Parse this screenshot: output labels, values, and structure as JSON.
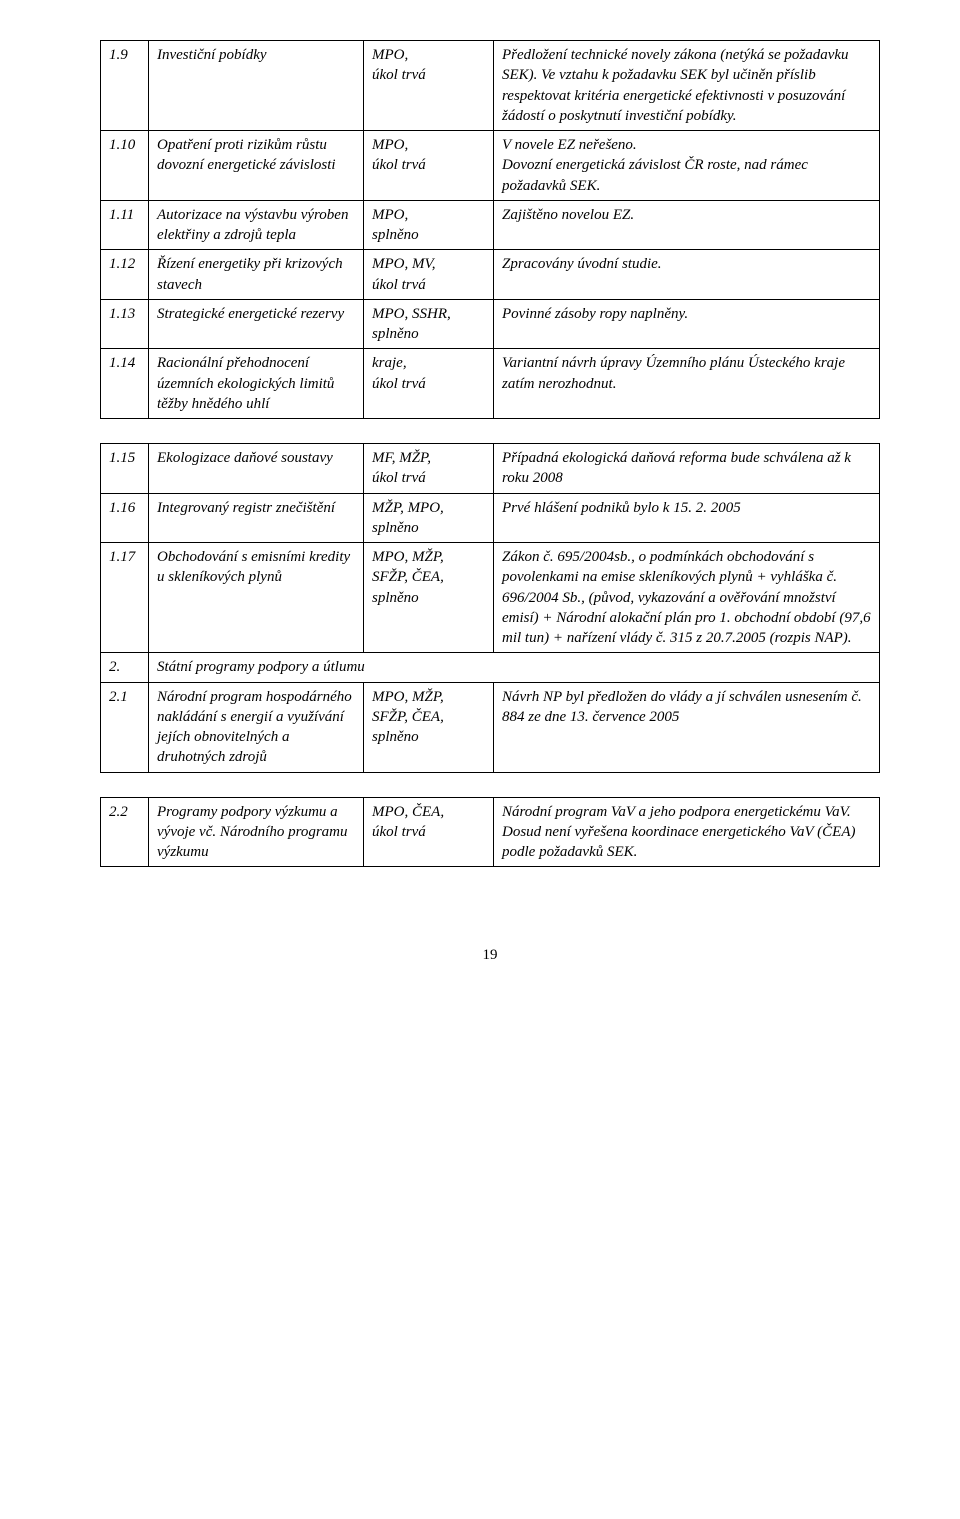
{
  "t1": {
    "rows": [
      {
        "num": "1.9",
        "title": "Investiční pobídky",
        "resp": "MPO,\núkol trvá",
        "note": "Předložení technické novely zákona (netýká se požadavku SEK). Ve vztahu k požadavku SEK byl učiněn příslib respektovat kritéria energetické efektivnosti v posuzování žádostí o poskytnutí investiční pobídky."
      },
      {
        "num": "1.10",
        "title": "Opatření proti rizikům růstu dovozní energetické závislosti",
        "resp": "MPO,\núkol trvá",
        "note": "V novele EZ neřešeno.\nDovozní energetická závislost ČR roste, nad rámec požadavků SEK."
      },
      {
        "num": "1.11",
        "title": "Autorizace na výstavbu výroben elektřiny a zdrojů tepla",
        "resp": "MPO,\nsplněno",
        "note": "Zajištěno novelou EZ."
      },
      {
        "num": "1.12",
        "title": "Řízení energetiky při krizových stavech",
        "resp": "MPO, MV,\núkol trvá",
        "note": "Zpracovány úvodní studie."
      },
      {
        "num": "1.13",
        "title": "Strategické energetické rezervy",
        "resp": "MPO, SSHR,\nsplněno",
        "note": "Povinné zásoby ropy naplněny."
      },
      {
        "num": "1.14",
        "title": "Racionální přehodnocení územních ekologických limitů těžby hnědého uhlí",
        "resp": "kraje,\núkol trvá",
        "note": "Variantní návrh úpravy Územního plánu Ústeckého kraje zatím nerozhodnut."
      }
    ]
  },
  "t2": {
    "rows": [
      {
        "num": "1.15",
        "title": "Ekologizace daňové soustavy",
        "resp": "MF, MŽP,\núkol trvá",
        "note": "Případná ekologická daňová reforma bude schválena až k roku 2008"
      },
      {
        "num": "1.16",
        "title": "Integrovaný registr znečištění",
        "resp": "MŽP, MPO,\nsplněno",
        "note": "Prvé hlášení podniků bylo k 15. 2. 2005"
      },
      {
        "num": "1.17",
        "title": "Obchodování s emisními kredity u skleníkových plynů",
        "resp": "MPO, MŽP,\nSFŽP, ČEA,\nsplněno",
        "note": "Zákon č. 695/2004sb., o podmínkách obchodování s povolenkami na emise skleníkových plynů + vyhláška č. 696/2004 Sb., (původ, vykazování a ověřování množství emisí) + Národní alokační plán pro 1. obchodní období (97,6 mil tun) + nařízení vlády č. 315 z 20.7.2005 (rozpis NAP)."
      }
    ],
    "section": {
      "num": "2.",
      "title": "Státní programy podpory a útlumu"
    },
    "rows2": [
      {
        "num": "2.1",
        "title": "Národní program hospodárného nakládání s energií a využívání jejích obnovitelných a druhotných zdrojů",
        "resp": "MPO, MŽP,\nSFŽP, ČEA,\nsplněno",
        "note": "Návrh NP byl předložen do vlády a jí schválen usnesením č. 884 ze dne 13. července 2005"
      }
    ]
  },
  "t3": {
    "rows": [
      {
        "num": "2.2",
        "title": "Programy podpory výzkumu a vývoje vč. Národního programu výzkumu",
        "resp": "MPO, ČEA,\núkol trvá",
        "note": "Národní program VaV a jeho podpora energetickému VaV. Dosud není vyřešena koordinace energetického VaV (ČEA) podle požadavků SEK."
      }
    ]
  },
  "page_number": "19"
}
